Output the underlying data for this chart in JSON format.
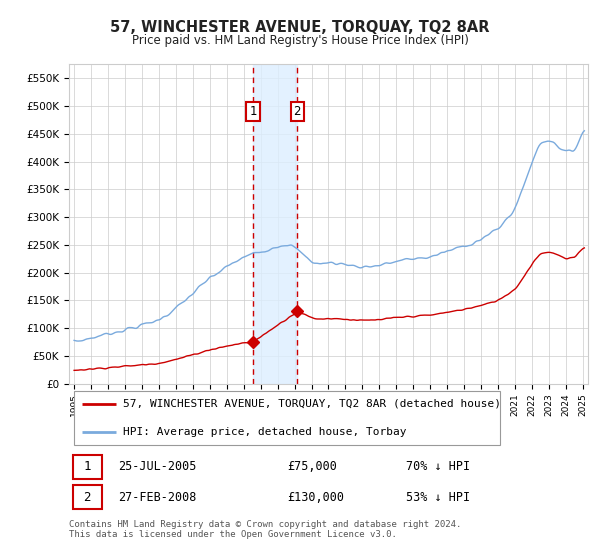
{
  "title": "57, WINCHESTER AVENUE, TORQUAY, TQ2 8AR",
  "subtitle": "Price paid vs. HM Land Registry's House Price Index (HPI)",
  "legend_line1": "57, WINCHESTER AVENUE, TORQUAY, TQ2 8AR (detached house)",
  "legend_line2": "HPI: Average price, detached house, Torbay",
  "transaction1_date": "25-JUL-2005",
  "transaction1_price": "£75,000",
  "transaction1_hpi": "70% ↓ HPI",
  "transaction1_year": 2005.56,
  "transaction1_value": 75000,
  "transaction2_date": "27-FEB-2008",
  "transaction2_price": "£130,000",
  "transaction2_hpi": "53% ↓ HPI",
  "transaction2_year": 2008.16,
  "transaction2_value": 130000,
  "footnote": "Contains HM Land Registry data © Crown copyright and database right 2024.\nThis data is licensed under the Open Government Licence v3.0.",
  "hpi_color": "#7aaadd",
  "price_color": "#cc0000",
  "vertical_line_color": "#cc0000",
  "shade_color": "#ddeeff",
  "ylim": [
    0,
    575000
  ],
  "xlim_start": 1994.7,
  "xlim_end": 2025.3,
  "background_color": "#ffffff",
  "grid_color": "#cccccc",
  "title_color": "#222222"
}
